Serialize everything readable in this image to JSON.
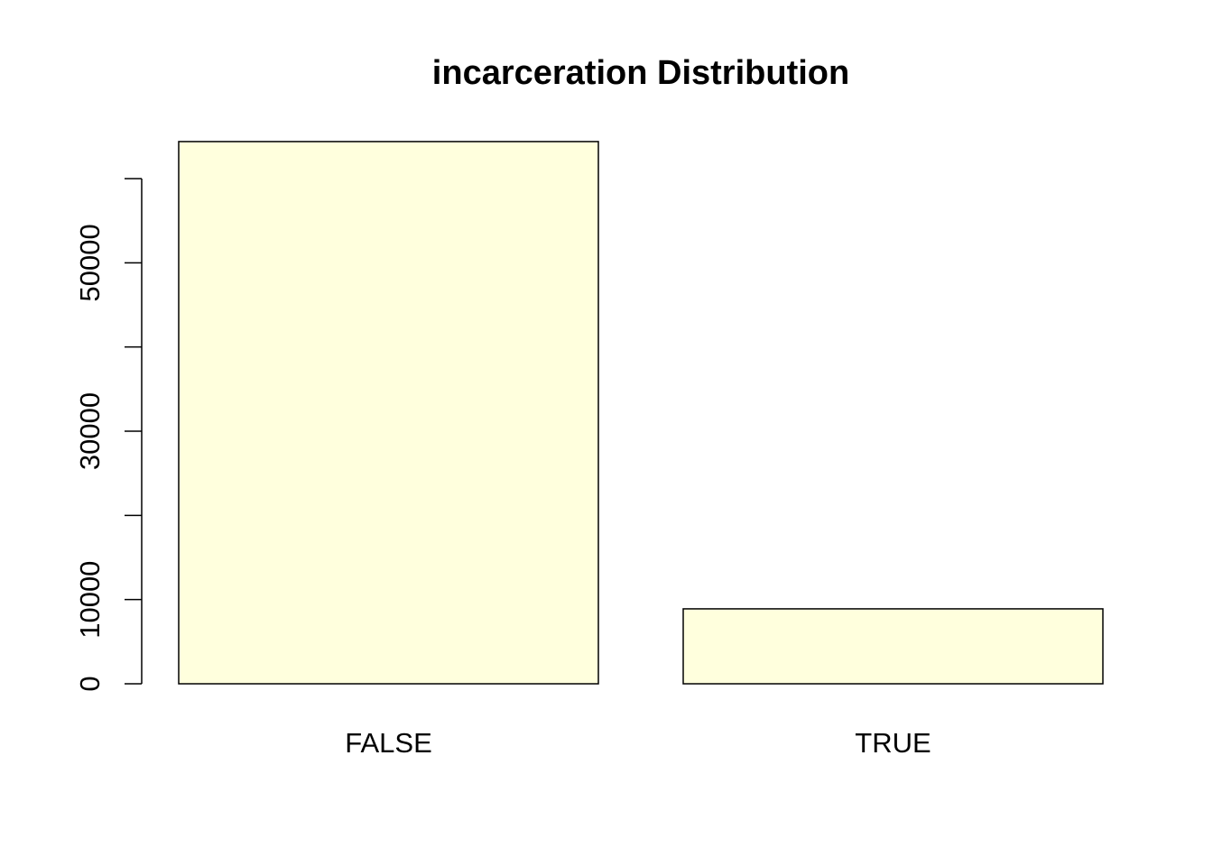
{
  "chart_data": {
    "type": "bar",
    "title": "incarceration Distribution",
    "xlabel": "",
    "ylabel": "",
    "categories": [
      "FALSE",
      "TRUE"
    ],
    "values": [
      64400,
      8900
    ],
    "ylim": [
      0,
      60000
    ],
    "y_ticks": [
      0,
      10000,
      20000,
      30000,
      40000,
      50000,
      60000
    ],
    "y_tick_labels": [
      "0",
      "10000",
      "",
      "30000",
      "",
      "50000",
      ""
    ],
    "bar_fill": "#FFFFDD",
    "bar_stroke": "#000000",
    "grid": false,
    "legend": "none"
  }
}
